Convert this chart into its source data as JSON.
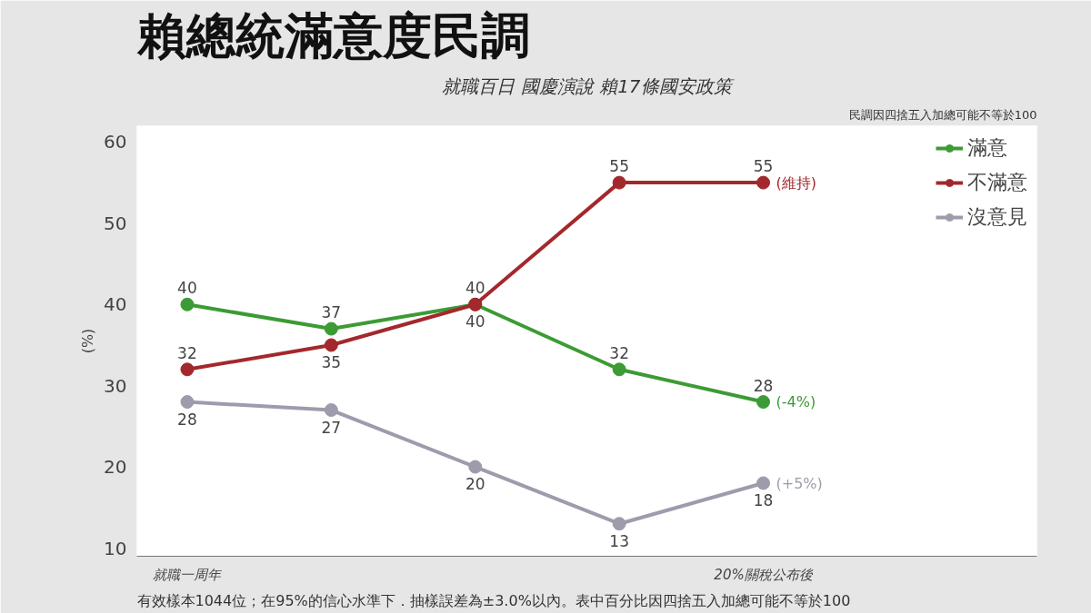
{
  "chart_data": {
    "type": "line",
    "title": "賴總統滿意度民調",
    "subtitle": "就職百日 國慶演說 賴17條國安政策",
    "ylabel": "(%)",
    "categories": [
      "就職一周年",
      null,
      null,
      null,
      "20%關稅公布後"
    ],
    "series": [
      {
        "name": "滿意",
        "color": "#3c9b34",
        "values": [
          40,
          37,
          40,
          32,
          28
        ]
      },
      {
        "name": "不滿意",
        "color": "#a3282c",
        "values": [
          32,
          35,
          40,
          55,
          55
        ]
      },
      {
        "name": "沒意見",
        "color": "#9c9cac",
        "values": [
          28,
          27,
          20,
          13,
          18
        ]
      }
    ],
    "ylim": [
      9,
      62
    ],
    "yticks": [
      10,
      20,
      30,
      40,
      50,
      60
    ],
    "data_labels": true,
    "marker": "circle",
    "grid": false,
    "legend": "right",
    "annotations": [
      {
        "text": "(維持)",
        "x": "20%關稅公布後",
        "y": 55
      },
      {
        "text": "(-4%)",
        "x": "20%關稅公布後",
        "y": 28
      },
      {
        "text": "(+5%)",
        "x": "20%關稅公布後",
        "y": 18
      },
      "民調因四捨五入加總可能不等於100",
      "有效樣本1044位；在95%的信心水準下．抽樣誤差為±3.0%以內。表中百分比因四捨五入加總可能不等於100"
    ]
  }
}
